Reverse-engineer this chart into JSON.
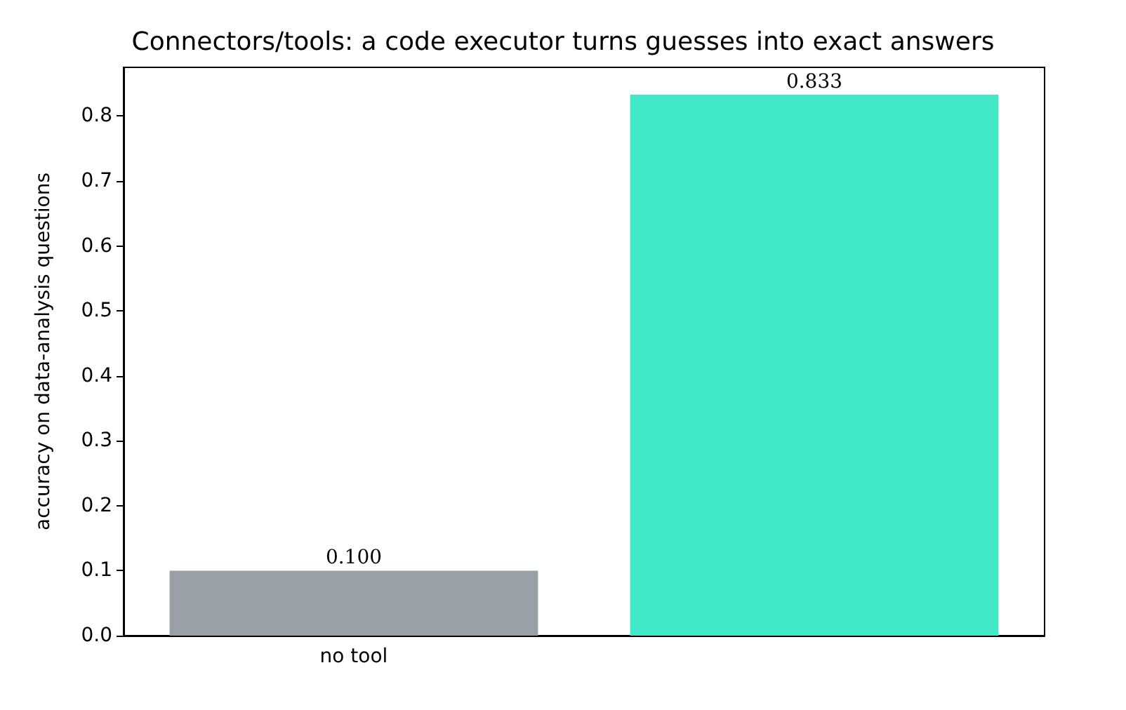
{
  "chart_data": {
    "type": "bar",
    "title": "Connectors/tools: a code executor turns guesses into exact answers",
    "ylabel": "accuracy on data-analysis questions",
    "categories": [
      "no tool",
      null
    ],
    "values": [
      0.1,
      0.833
    ],
    "colors": [
      "#9aa0a6",
      "#40e8c8"
    ],
    "value_labels": [
      "0.100",
      "0.833"
    ],
    "ylim": [
      0,
      0.875
    ],
    "yticks": [
      {
        "value": 0,
        "label": "0.0"
      },
      0.1,
      0.2,
      0.3,
      0.4,
      0.5,
      0.6,
      0.7,
      0.8
    ],
    "grid": false
  }
}
